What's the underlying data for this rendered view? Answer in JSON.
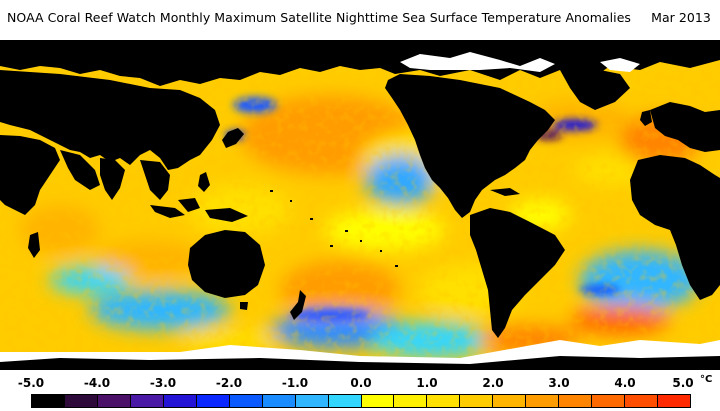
{
  "title": "NOAA Coral Reef Watch Monthly Maximum Satellite Nighttime Sea Surface Temperature Anomalies     Mar 2013",
  "legend": {
    "labels": [
      "-5.0",
      "-4.0",
      "-3.0",
      "-2.0",
      "-1.0",
      "0.0",
      "1.0",
      "2.0",
      "3.0",
      "4.0",
      "5.0"
    ],
    "unit": "°C",
    "colors": [
      "#000000",
      "#2e0a3a",
      "#4b1068",
      "#4a1aa6",
      "#2415d6",
      "#0a28ff",
      "#0a5aff",
      "#1a8cff",
      "#2fb6ff",
      "#33d6ff",
      "#ffff00",
      "#fff000",
      "#ffe000",
      "#ffcc00",
      "#ffb400",
      "#ff9c00",
      "#ff8400",
      "#ff6a00",
      "#ff4e00",
      "#ff2a00"
    ]
  },
  "map": {
    "land_color": "#000000",
    "ice_color": "#ffffff"
  }
}
